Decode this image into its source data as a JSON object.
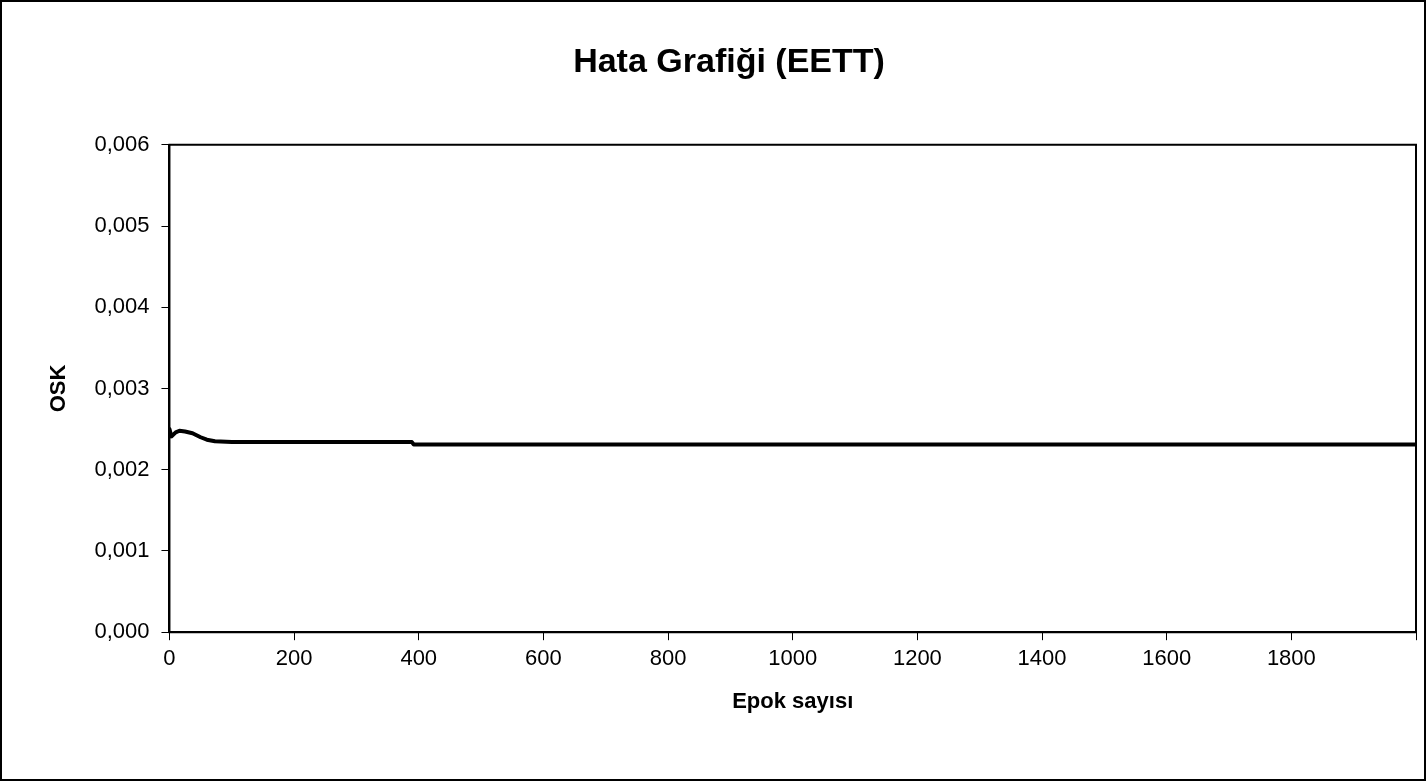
{
  "chart_data": {
    "type": "line",
    "title": "Hata Grafiği (EETT)",
    "xlabel": "Epok sayısı",
    "ylabel": "OSK",
    "x": [
      0,
      3,
      10,
      16,
      25,
      37,
      50,
      60,
      73,
      100,
      200,
      300,
      389,
      392,
      600,
      1000,
      1500,
      2000
    ],
    "series": [
      {
        "color": "#000000",
        "values": [
          0.0025,
          0.00241,
          0.00246,
          0.00248,
          0.00247,
          0.00245,
          0.0024,
          0.00237,
          0.00235,
          0.00234,
          0.00234,
          0.00234,
          0.00234,
          0.00231,
          0.00231,
          0.00231,
          0.00231,
          0.00231
        ]
      }
    ],
    "xlim": [
      0,
      2000
    ],
    "xticks": [
      0,
      200,
      400,
      600,
      800,
      1000,
      1200,
      1400,
      1600,
      1800,
      {
        "value": 2000,
        "label": null
      }
    ],
    "ylim": [
      0,
      0.006
    ],
    "yticks": [
      {
        "value": 0,
        "label": "0,000"
      },
      {
        "value": 0.001,
        "label": "0,001"
      },
      {
        "value": 0.002,
        "label": "0,002"
      },
      {
        "value": 0.003,
        "label": "0,003"
      },
      {
        "value": 0.004,
        "label": "0,004"
      },
      {
        "value": 0.005,
        "label": "0,005"
      },
      {
        "value": 0.006,
        "label": "0,006"
      }
    ],
    "grid": false,
    "legend": false,
    "marker": "none",
    "line_style": "solid"
  }
}
